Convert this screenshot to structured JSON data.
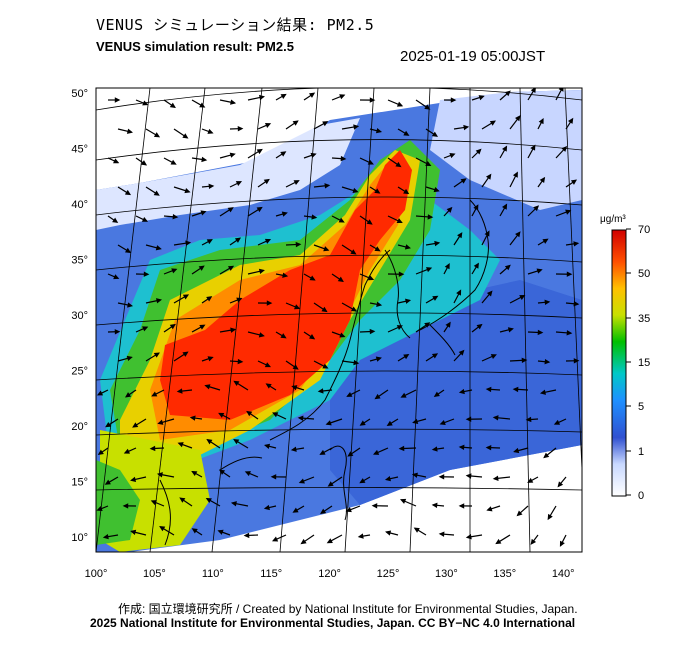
{
  "header": {
    "title_jp": "VENUS シミュレーション結果: PM2.5",
    "title_en": "VENUS simulation result: PM2.5",
    "timestamp": "2025-01-19 05:00JST"
  },
  "map": {
    "lon_ticks": [
      "100°",
      "105°",
      "110°",
      "115°",
      "120°",
      "125°",
      "130°",
      "135°",
      "140°"
    ],
    "lat_ticks": [
      "50°",
      "45°",
      "40°",
      "35°",
      "30°",
      "25°",
      "20°",
      "15°",
      "10°"
    ],
    "lon_range": [
      100,
      141
    ],
    "lat_range": [
      9,
      51
    ]
  },
  "colorbar": {
    "unit": "μg/m³",
    "labels": [
      "70",
      "50",
      "35",
      "15",
      "5",
      "1",
      "0"
    ],
    "colors": [
      "#ffffff",
      "#2040c0",
      "#1e90ff",
      "#00c8c8",
      "#00c000",
      "#c8e000",
      "#ffd000",
      "#ff8000",
      "#ff2000",
      "#d00000"
    ]
  },
  "footer": {
    "credit_jp": "作成: 国立環境研究所 / Created by National Institute for Environmental Studies, Japan.",
    "credit_en": "2025 National Institute for Environmental Studies, Japan. CC BY−NC 4.0 International"
  }
}
